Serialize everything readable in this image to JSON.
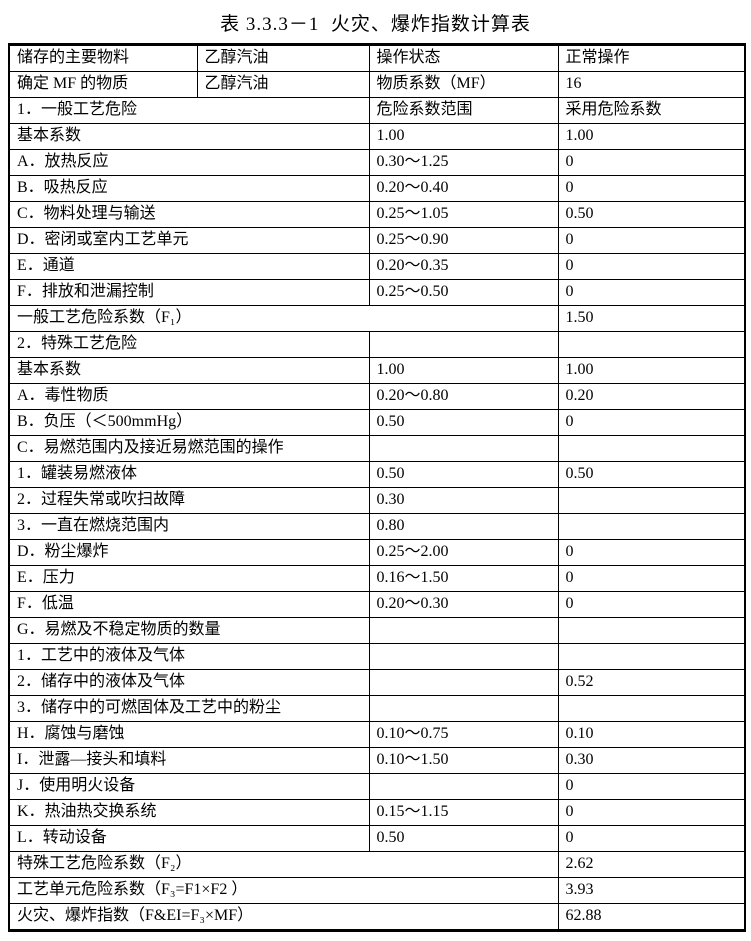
{
  "title": "表 3.3.3－1  火灾、爆炸指数计算表",
  "table": {
    "rows": [
      [
        {
          "t": "储存的主要物料",
          "s": 1
        },
        {
          "t": "乙醇汽油",
          "s": 1
        },
        {
          "t": "操作状态",
          "s": 1
        },
        {
          "t": "正常操作",
          "s": 1
        }
      ],
      [
        {
          "t": "确定 MF 的物质",
          "s": 1
        },
        {
          "t": "乙醇汽油",
          "s": 1
        },
        {
          "t": "物质系数（MF）",
          "s": 1
        },
        {
          "t": "16",
          "s": 1
        }
      ],
      [
        {
          "t": "1．一般工艺危险",
          "s": 2
        },
        {
          "t": "危险系数范围",
          "s": 1
        },
        {
          "t": "采用危险系数",
          "s": 1
        }
      ],
      [
        {
          "t": "基本系数",
          "s": 2
        },
        {
          "t": "1.00",
          "s": 1
        },
        {
          "t": "1.00",
          "s": 1
        }
      ],
      [
        {
          "t": "A．放热反应",
          "s": 2
        },
        {
          "t": "0.30～1.25",
          "s": 1
        },
        {
          "t": "0",
          "s": 1
        }
      ],
      [
        {
          "t": "B．吸热反应",
          "s": 2
        },
        {
          "t": "0.20～0.40",
          "s": 1
        },
        {
          "t": "0",
          "s": 1
        }
      ],
      [
        {
          "t": "C．物料处理与输送",
          "s": 2
        },
        {
          "t": "0.25～1.05",
          "s": 1
        },
        {
          "t": "0.50",
          "s": 1
        }
      ],
      [
        {
          "t": "D．密闭或室内工艺单元",
          "s": 2
        },
        {
          "t": "0.25～0.90",
          "s": 1
        },
        {
          "t": "0",
          "s": 1
        }
      ],
      [
        {
          "t": "E．通道",
          "s": 2
        },
        {
          "t": "0.20～0.35",
          "s": 1
        },
        {
          "t": "0",
          "s": 1
        }
      ],
      [
        {
          "t": "F．排放和泄漏控制",
          "s": 2
        },
        {
          "t": "0.25～0.50",
          "s": 1
        },
        {
          "t": "0",
          "s": 1
        }
      ],
      [
        {
          "t": "一般工艺危险系数（F₁）",
          "s": 3
        },
        {
          "t": "1.50",
          "s": 1
        }
      ],
      [
        {
          "t": "2．特殊工艺危险",
          "s": 2
        },
        {
          "t": "",
          "s": 1
        },
        {
          "t": "",
          "s": 1
        }
      ],
      [
        {
          "t": "基本系数",
          "s": 2
        },
        {
          "t": "1.00",
          "s": 1
        },
        {
          "t": "1.00",
          "s": 1
        }
      ],
      [
        {
          "t": "A．毒性物质",
          "s": 2
        },
        {
          "t": "0.20～0.80",
          "s": 1
        },
        {
          "t": "0.20",
          "s": 1
        }
      ],
      [
        {
          "t": "B．负压（＜500mmHg）",
          "s": 2
        },
        {
          "t": "0.50",
          "s": 1
        },
        {
          "t": "0",
          "s": 1
        }
      ],
      [
        {
          "t": "C．易燃范围内及接近易燃范围的操作",
          "s": 2
        },
        {
          "t": "",
          "s": 1
        },
        {
          "t": "",
          "s": 1
        }
      ],
      [
        {
          "t": "1．罐装易燃液体",
          "s": 2
        },
        {
          "t": "0.50",
          "s": 1
        },
        {
          "t": "0.50",
          "s": 1
        }
      ],
      [
        {
          "t": "2．过程失常或吹扫故障",
          "s": 2
        },
        {
          "t": "0.30",
          "s": 1
        },
        {
          "t": "",
          "s": 1
        }
      ],
      [
        {
          "t": "3．一直在燃烧范围内",
          "s": 2
        },
        {
          "t": "0.80",
          "s": 1
        },
        {
          "t": "",
          "s": 1
        }
      ],
      [
        {
          "t": "D．粉尘爆炸",
          "s": 2
        },
        {
          "t": "0.25～2.00",
          "s": 1
        },
        {
          "t": "0",
          "s": 1
        }
      ],
      [
        {
          "t": "E．压力",
          "s": 2
        },
        {
          "t": "0.16～1.50",
          "s": 1
        },
        {
          "t": "0",
          "s": 1
        }
      ],
      [
        {
          "t": "F．低温",
          "s": 2
        },
        {
          "t": "0.20～0.30",
          "s": 1
        },
        {
          "t": "0",
          "s": 1
        }
      ],
      [
        {
          "t": "G．易燃及不稳定物质的数量",
          "s": 2
        },
        {
          "t": "",
          "s": 1
        },
        {
          "t": "",
          "s": 1
        }
      ],
      [
        {
          "t": "1．工艺中的液体及气体",
          "s": 2
        },
        {
          "t": "",
          "s": 1
        },
        {
          "t": "",
          "s": 1
        }
      ],
      [
        {
          "t": "2．储存中的液体及气体",
          "s": 2
        },
        {
          "t": "",
          "s": 1
        },
        {
          "t": "0.52",
          "s": 1
        }
      ],
      [
        {
          "t": "3．储存中的可燃固体及工艺中的粉尘",
          "s": 2
        },
        {
          "t": "",
          "s": 1
        },
        {
          "t": "",
          "s": 1
        }
      ],
      [
        {
          "t": "H．腐蚀与磨蚀",
          "s": 2
        },
        {
          "t": "0.10～0.75",
          "s": 1
        },
        {
          "t": "0.10",
          "s": 1
        }
      ],
      [
        {
          "t": "I．泄露—接头和填料",
          "s": 2
        },
        {
          "t": "0.10～1.50",
          "s": 1
        },
        {
          "t": "0.30",
          "s": 1
        }
      ],
      [
        {
          "t": "J．使用明火设备",
          "s": 2
        },
        {
          "t": "",
          "s": 1
        },
        {
          "t": "0",
          "s": 1
        }
      ],
      [
        {
          "t": "K．热油热交换系统",
          "s": 2
        },
        {
          "t": "0.15～1.15",
          "s": 1
        },
        {
          "t": "0",
          "s": 1
        }
      ],
      [
        {
          "t": "L．转动设备",
          "s": 2
        },
        {
          "t": "0.50",
          "s": 1
        },
        {
          "t": "0",
          "s": 1
        }
      ],
      [
        {
          "t": "特殊工艺危险系数（F₂）",
          "s": 3
        },
        {
          "t": "2.62",
          "s": 1
        }
      ],
      [
        {
          "t": "工艺单元危险系数（F₃=F1×F2 ）",
          "s": 3
        },
        {
          "t": "3.93",
          "s": 1
        }
      ],
      [
        {
          "t": "火灾、爆炸指数（F&EI=F₃×MF）",
          "s": 3
        },
        {
          "t": "62.88",
          "s": 1
        }
      ]
    ]
  },
  "colors": {
    "text": "#000000",
    "border": "#000000",
    "background": "#ffffff"
  }
}
